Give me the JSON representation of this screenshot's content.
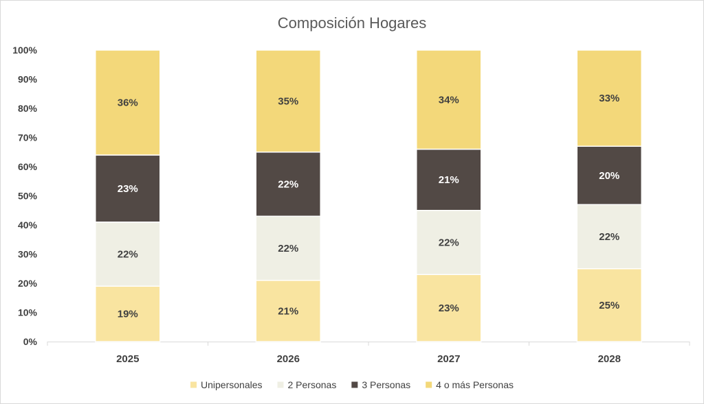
{
  "chart_data": {
    "type": "bar",
    "stacked": true,
    "title": "Composición Hogares",
    "categories": [
      "2025",
      "2026",
      "2027",
      "2028"
    ],
    "series": [
      {
        "name": "Unipersonales",
        "values": [
          19,
          21,
          23,
          25
        ],
        "labels": [
          "19%",
          "21%",
          "23%",
          "25%"
        ],
        "color": "#f9e4a0",
        "label_color": "#404040"
      },
      {
        "name": "2 Personas",
        "values": [
          22,
          22,
          22,
          22
        ],
        "labels": [
          "22%",
          "22%",
          "22%",
          "22%"
        ],
        "color": "#efefe4",
        "label_color": "#404040"
      },
      {
        "name": "3 Personas",
        "values": [
          23,
          22,
          21,
          20
        ],
        "labels": [
          "23%",
          "22%",
          "21%",
          "20%"
        ],
        "color": "#524945",
        "label_color": "#ffffff"
      },
      {
        "name": "4 o más Personas",
        "values": [
          36,
          35,
          34,
          33
        ],
        "labels": [
          "36%",
          "35%",
          "34%",
          "33%"
        ],
        "color": "#f3d87a",
        "label_color": "#404040"
      }
    ],
    "y_ticks": [
      "0%",
      "10%",
      "20%",
      "30%",
      "40%",
      "50%",
      "60%",
      "70%",
      "80%",
      "90%",
      "100%"
    ],
    "ylim": [
      0,
      100
    ],
    "grid": false,
    "legend_position": "bottom"
  }
}
